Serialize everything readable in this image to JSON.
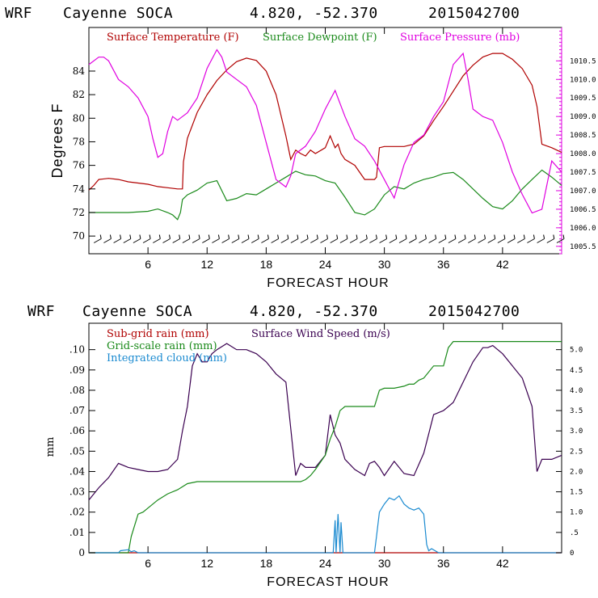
{
  "header1": {
    "model": "WRF",
    "station": "Cayenne SOCA",
    "coords": "4.820, -52.370",
    "date": "2015042700"
  },
  "header2": {
    "model": "WRF",
    "station": "Cayenne SOCA",
    "coords": "4.820, -52.370",
    "date": "2015042700"
  },
  "colors": {
    "temperature": "#b00000",
    "dewpoint": "#1a8a1a",
    "pressure": "#e000e0",
    "wind": "#3a0050",
    "subgrid": "#b00000",
    "gridscale": "#1a8a1a",
    "cloud": "#1a8ad0"
  },
  "chart_data": [
    {
      "type": "line",
      "xlabel": "FORECAST HOUR",
      "ylabel": "Degrees F",
      "xlim": [
        0,
        48
      ],
      "xticks": [
        "6",
        "12",
        "18",
        "24",
        "30",
        "36",
        "42"
      ],
      "ylim": [
        68.5,
        87.7
      ],
      "yticks": [
        "70",
        "72",
        "74",
        "76",
        "78",
        "80",
        "82",
        "84"
      ],
      "y2lim": [
        1005.3,
        1011.4
      ],
      "y2ticks": [
        "1005.5",
        "1006.0",
        "1006.5",
        "1007.0",
        "1007.5",
        "1008.0",
        "1008.5",
        "1009.0",
        "1009.5",
        "1010.0",
        "1010.5"
      ],
      "legend_position": "top",
      "series": [
        {
          "name": "Surface Temperature (F)",
          "axis": "left",
          "color": "#b00000",
          "x": [
            0,
            0.5,
            1,
            2,
            3,
            4,
            5,
            6,
            7,
            8,
            9,
            9.5,
            9.6,
            10,
            11,
            12,
            13,
            14,
            15,
            16,
            17,
            18,
            19,
            20,
            20.5,
            21,
            21.5,
            22,
            22.5,
            23,
            24,
            24.5,
            25,
            25.3,
            25.6,
            26,
            27,
            28,
            29,
            29.2,
            29.5,
            30,
            31,
            32,
            33,
            34,
            35,
            36,
            37,
            38,
            39,
            40,
            41,
            42,
            43,
            44,
            45,
            45.5,
            46,
            47,
            48
          ],
          "y": [
            73.9,
            74.3,
            74.8,
            74.9,
            74.8,
            74.6,
            74.5,
            74.4,
            74.2,
            74.1,
            74.0,
            74.0,
            76.3,
            78.3,
            80.5,
            82.0,
            83.2,
            84.1,
            84.8,
            85.1,
            84.9,
            84.0,
            82.0,
            78.5,
            76.5,
            77.3,
            77.0,
            76.8,
            77.3,
            77.0,
            77.5,
            78.5,
            77.5,
            77.8,
            77.0,
            76.5,
            76.0,
            74.8,
            74.8,
            75.0,
            77.5,
            77.6,
            77.6,
            77.6,
            77.8,
            78.5,
            79.8,
            81.0,
            82.3,
            83.6,
            84.5,
            85.2,
            85.5,
            85.5,
            85.0,
            84.2,
            82.8,
            81.0,
            77.8,
            77.5,
            77.1
          ]
        },
        {
          "name": "Surface Dewpoint (F)",
          "axis": "left",
          "color": "#1a8a1a",
          "x": [
            0,
            2,
            4,
            6,
            7,
            8,
            8.5,
            9,
            9.3,
            9.5,
            10,
            11,
            12,
            13,
            14,
            15,
            16,
            17,
            18,
            19,
            20,
            21,
            22,
            23,
            24,
            25,
            26,
            27,
            28,
            29,
            30,
            31,
            32,
            33,
            34,
            35,
            36,
            37,
            38,
            39,
            40,
            41,
            42,
            43,
            44,
            45,
            46,
            47,
            48
          ],
          "y": [
            72.0,
            72.0,
            72.0,
            72.1,
            72.3,
            72.0,
            71.8,
            71.4,
            72.0,
            73.1,
            73.5,
            73.9,
            74.5,
            74.7,
            73.0,
            73.2,
            73.6,
            73.5,
            74.0,
            74.5,
            75.0,
            75.5,
            75.2,
            75.1,
            74.7,
            74.5,
            73.3,
            72.0,
            71.8,
            72.3,
            73.5,
            74.2,
            74.0,
            74.5,
            74.8,
            75.0,
            75.3,
            75.4,
            74.8,
            74.0,
            73.2,
            72.5,
            72.3,
            73.0,
            74.0,
            74.8,
            75.6,
            75.0,
            74.3
          ]
        },
        {
          "name": "Surface Pressure (mb)",
          "axis": "right",
          "color": "#e000e0",
          "x": [
            0,
            1,
            1.5,
            2,
            3,
            4,
            5,
            6,
            6.5,
            7,
            7.5,
            8,
            8.5,
            9,
            9.5,
            10,
            11,
            12,
            13,
            13.5,
            14,
            15,
            16,
            17,
            18,
            19,
            20,
            20.5,
            21,
            22,
            23,
            24,
            25,
            26,
            27,
            28,
            29,
            30,
            31,
            32,
            33,
            34,
            35,
            36,
            37,
            38,
            38.5,
            39,
            40,
            41,
            42,
            43,
            44,
            45,
            46,
            47,
            48
          ],
          "y": [
            1010.4,
            1010.6,
            1010.6,
            1010.5,
            1010.0,
            1009.8,
            1009.5,
            1009.0,
            1008.4,
            1007.9,
            1008.0,
            1008.6,
            1009.0,
            1008.9,
            1009.0,
            1009.1,
            1009.5,
            1010.3,
            1010.8,
            1010.6,
            1010.2,
            1010.0,
            1009.8,
            1009.3,
            1008.3,
            1007.3,
            1007.1,
            1007.4,
            1008.0,
            1008.2,
            1008.6,
            1009.2,
            1009.7,
            1009.0,
            1008.4,
            1008.2,
            1007.8,
            1007.3,
            1006.8,
            1007.7,
            1008.3,
            1008.5,
            1009.0,
            1009.4,
            1010.4,
            1010.7,
            1010.0,
            1009.2,
            1009.0,
            1008.9,
            1008.3,
            1007.5,
            1006.9,
            1006.4,
            1006.5,
            1007.8,
            1007.5
          ]
        }
      ],
      "wind_barbs": {
        "y": 69.7,
        "x_start": 1,
        "x_end": 48,
        "interval_hours": 1
      }
    },
    {
      "type": "line",
      "xlabel": "FORECAST HOUR",
      "ylabel": "mm",
      "xlim": [
        0,
        48
      ],
      "xticks": [
        "6",
        "12",
        "18",
        "24",
        "30",
        "36",
        "42"
      ],
      "ylim": [
        0,
        0.113
      ],
      "yticks": [
        "0",
        ".01",
        ".02",
        ".03",
        ".04",
        ".05",
        ".06",
        ".07",
        ".08",
        ".09",
        ".10"
      ],
      "y2lim": [
        0,
        5.65
      ],
      "y2ticks": [
        "0",
        ".5",
        "1.0",
        "1.5",
        "2.0",
        "2.5",
        "3.0",
        "3.5",
        "4.0",
        "4.5",
        "5.0"
      ],
      "legend_position": "top-left",
      "series": [
        {
          "name": "Sub-grid rain (mm)",
          "axis": "left",
          "color": "#b00000",
          "x": [
            0,
            48
          ],
          "y": [
            0,
            0
          ]
        },
        {
          "name": "Surface Wind Speed (m/s)",
          "axis": "right",
          "color": "#3a0050",
          "x": [
            0,
            1,
            2,
            3,
            4,
            5,
            6,
            7,
            8,
            9,
            9.5,
            10,
            10.5,
            11,
            11.5,
            12,
            12.5,
            13,
            14,
            15,
            16,
            17,
            18,
            19,
            20,
            21,
            21.5,
            22,
            23,
            24,
            24.5,
            25,
            25.5,
            26,
            27,
            28,
            28.5,
            29,
            29.5,
            30,
            31,
            32,
            33,
            34,
            35,
            36,
            37,
            38,
            39,
            40,
            40.5,
            41,
            42,
            43,
            44,
            45,
            45.5,
            46,
            47,
            48
          ],
          "y": [
            1.3,
            1.6,
            1.85,
            2.2,
            2.1,
            2.05,
            2.0,
            2.0,
            2.05,
            2.3,
            3.0,
            3.6,
            4.6,
            4.9,
            4.7,
            4.7,
            4.9,
            5.0,
            5.15,
            5.0,
            5.0,
            4.9,
            4.7,
            4.4,
            4.2,
            1.9,
            2.2,
            2.1,
            2.1,
            2.4,
            3.4,
            2.9,
            2.7,
            2.3,
            2.05,
            1.9,
            2.2,
            2.25,
            2.1,
            1.9,
            2.25,
            1.95,
            1.9,
            2.45,
            3.4,
            3.5,
            3.7,
            4.2,
            4.7,
            5.05,
            5.05,
            5.1,
            4.9,
            4.6,
            4.3,
            3.6,
            2.0,
            2.3,
            2.3,
            2.4
          ]
        },
        {
          "name": "Grid-scale rain (mm)",
          "axis": "left",
          "color": "#1a8a1a",
          "x": [
            0,
            4,
            4.3,
            5,
            5.5,
            6,
            7,
            8,
            9,
            10,
            11,
            12,
            13,
            14,
            16,
            18,
            20,
            21.5,
            22,
            22.5,
            23,
            24,
            24.5,
            25,
            25.5,
            26,
            28,
            29,
            29.5,
            30,
            31,
            32,
            32.5,
            33,
            33.5,
            34,
            35,
            36,
            36.5,
            37,
            38,
            40,
            44,
            48
          ],
          "y": [
            0,
            0,
            0.008,
            0.019,
            0.02,
            0.022,
            0.026,
            0.029,
            0.031,
            0.034,
            0.035,
            0.035,
            0.035,
            0.035,
            0.035,
            0.035,
            0.035,
            0.035,
            0.036,
            0.038,
            0.041,
            0.048,
            0.056,
            0.062,
            0.07,
            0.072,
            0.072,
            0.072,
            0.08,
            0.081,
            0.081,
            0.082,
            0.083,
            0.083,
            0.085,
            0.086,
            0.092,
            0.092,
            0.101,
            0.104,
            0.104,
            0.104,
            0.104,
            0.104
          ]
        },
        {
          "name": "Integrated cloud (mm)",
          "axis": "left",
          "color": "#1a8ad0",
          "x": [
            0,
            3,
            3.2,
            4,
            4.3,
            4.6,
            5,
            24.8,
            25.0,
            25.1,
            25.3,
            25.5,
            25.6,
            25.8,
            29,
            29.2,
            29.5,
            30,
            30.5,
            31,
            31.5,
            32,
            32.5,
            33,
            33.5,
            34,
            34.3,
            34.5,
            34.8,
            35.5,
            48
          ],
          "y": [
            0,
            0,
            0.001,
            0.0015,
            0.0005,
            0.001,
            0,
            0,
            0.016,
            0,
            0.019,
            0,
            0.015,
            0,
            0,
            0.008,
            0.02,
            0.024,
            0.027,
            0.026,
            0.028,
            0.024,
            0.022,
            0.021,
            0.022,
            0.019,
            0.004,
            0.001,
            0.002,
            0,
            0
          ]
        }
      ]
    }
  ]
}
